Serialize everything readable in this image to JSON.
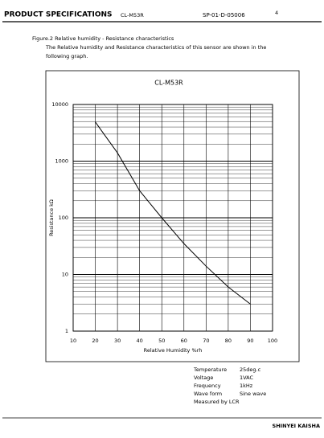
{
  "header": {
    "title": "PRODUCT SPECIFICATIONS",
    "model": "CL-M53R",
    "doc_number": "SP-01-D-05006",
    "page": "4"
  },
  "figure": {
    "caption": "Figure.2   Relative humidity - Resistance characteristics",
    "description": [
      "The Relative humidity and Resistance characteristics of this sensor are shown in the",
      "following graph."
    ]
  },
  "chart_data": {
    "type": "line",
    "title": "CL-M53R",
    "x_label": "Relative Humidity  %rh",
    "y_label": "Resistance  kΩ",
    "x": [
      20,
      30,
      40,
      50,
      60,
      70,
      80,
      90
    ],
    "values": [
      4900,
      1400,
      300,
      100,
      35,
      14,
      6,
      3
    ],
    "color": "#000000",
    "xlim": [
      10,
      100
    ],
    "ylim": [
      1,
      10000
    ],
    "xticks": [
      10,
      20,
      30,
      40,
      50,
      60,
      70,
      80,
      90,
      100
    ],
    "yticks": [
      1,
      10,
      100,
      1000,
      10000
    ],
    "log_y": true,
    "grid": true
  },
  "conditions": {
    "rows": [
      [
        "Temperature",
        "25deg.c"
      ],
      [
        "Voltage",
        "1VAC"
      ],
      [
        "Frequency",
        "1kHz"
      ],
      [
        "Wave form",
        "Sine wave"
      ]
    ],
    "note": "Measured by LCR"
  },
  "footer": {
    "company": "SHINYEI KAISHA"
  }
}
